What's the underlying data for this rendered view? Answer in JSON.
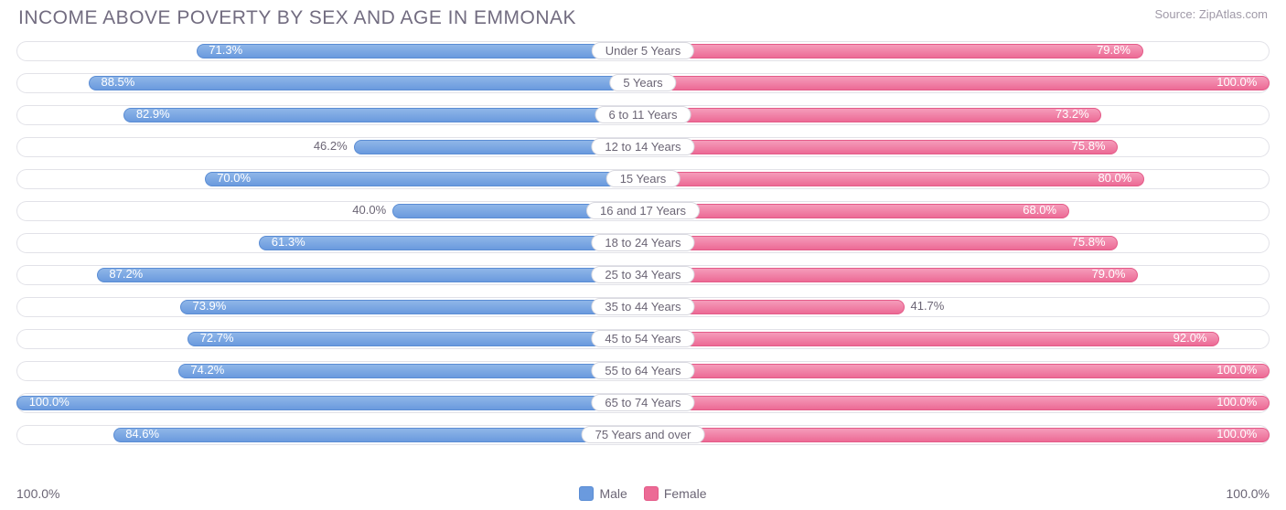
{
  "title": "INCOME ABOVE POVERTY BY SEX AND AGE IN EMMONAK",
  "source": "Source: ZipAtlas.com",
  "axis": {
    "left_label": "100.0%",
    "right_label": "100.0%",
    "max": 100.0
  },
  "colors": {
    "male_fill": "#6a9ade",
    "male_border": "#5a8cd4",
    "female_fill": "#ec6a95",
    "female_border": "#e45a88",
    "track_border": "#e2e2e8",
    "text": "#6b6575",
    "title_text": "#726c80",
    "background": "#ffffff"
  },
  "legend": {
    "male": "Male",
    "female": "Female"
  },
  "inside_threshold": 60.0,
  "rows": [
    {
      "label": "Under 5 Years",
      "male": 71.3,
      "female": 79.8
    },
    {
      "label": "5 Years",
      "male": 88.5,
      "female": 100.0
    },
    {
      "label": "6 to 11 Years",
      "male": 82.9,
      "female": 73.2
    },
    {
      "label": "12 to 14 Years",
      "male": 46.2,
      "female": 75.8
    },
    {
      "label": "15 Years",
      "male": 70.0,
      "female": 80.0
    },
    {
      "label": "16 and 17 Years",
      "male": 40.0,
      "female": 68.0
    },
    {
      "label": "18 to 24 Years",
      "male": 61.3,
      "female": 75.8
    },
    {
      "label": "25 to 34 Years",
      "male": 87.2,
      "female": 79.0
    },
    {
      "label": "35 to 44 Years",
      "male": 73.9,
      "female": 41.7
    },
    {
      "label": "45 to 54 Years",
      "male": 72.7,
      "female": 92.0
    },
    {
      "label": "55 to 64 Years",
      "male": 74.2,
      "female": 100.0
    },
    {
      "label": "65 to 74 Years",
      "male": 100.0,
      "female": 100.0
    },
    {
      "label": "75 Years and over",
      "male": 84.6,
      "female": 100.0
    }
  ]
}
